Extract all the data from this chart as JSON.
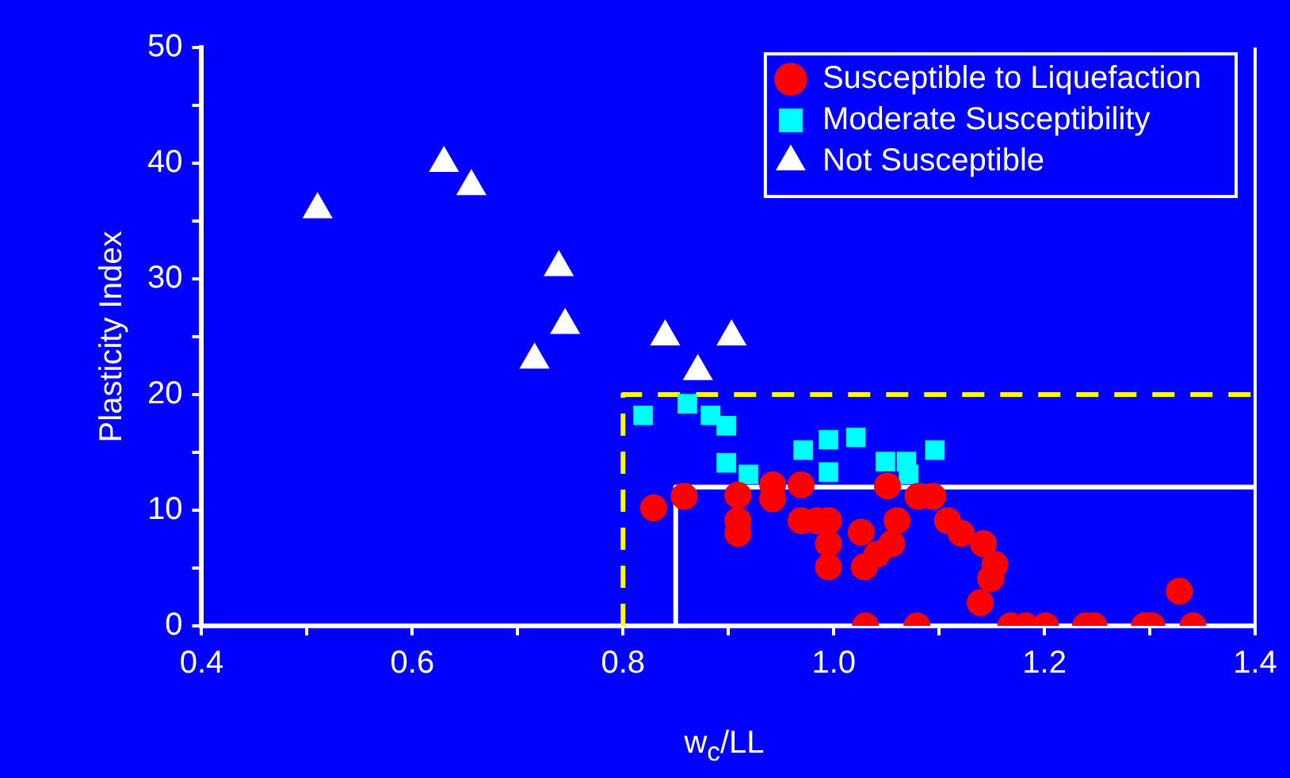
{
  "chart_data": {
    "type": "scatter",
    "xlabel": "w$_{c}$/LL",
    "ylabel": "Plasticity Index",
    "xlim": [
      0.4,
      1.4
    ],
    "ylim": [
      0,
      50
    ],
    "xticks": [
      0.4,
      {
        "value": 0.5,
        "label": null
      },
      0.6,
      {
        "value": 0.7,
        "label": null
      },
      0.8,
      {
        "value": 0.9,
        "label": null
      },
      {
        "value": 1.0,
        "label": "1.0"
      },
      {
        "value": 1.1,
        "label": null
      },
      1.2,
      {
        "value": 1.3,
        "label": null
      },
      1.4
    ],
    "yticks": [
      0,
      {
        "value": 5,
        "label": null
      },
      10,
      {
        "value": 15,
        "label": null
      },
      20,
      {
        "value": 25,
        "label": null
      },
      30,
      {
        "value": 35,
        "label": null
      },
      40,
      {
        "value": 45,
        "label": null
      },
      50
    ],
    "grid": false,
    "legend": "top right",
    "series": [
      {
        "name": "Susceptible to Liquefaction",
        "color": "#ff0000",
        "marker": "circle",
        "x": [
          0.829,
          0.858,
          0.909,
          0.909,
          0.909,
          0.942,
          0.942,
          0.969,
          0.969,
          0.984,
          0.995,
          0.995,
          0.995,
          1.026,
          1.029,
          1.041,
          1.055,
          1.06,
          1.051,
          1.08,
          1.094,
          1.108,
          1.121,
          1.142,
          1.153,
          1.149,
          1.139,
          1.03,
          1.079,
          1.168,
          1.182,
          1.201,
          1.239,
          1.247,
          1.295,
          1.302,
          1.341,
          1.328
        ],
        "values": [
          10.2,
          11.2,
          11.3,
          9.1,
          8.0,
          12.2,
          11.0,
          12.2,
          9.1,
          9.1,
          9.1,
          7.1,
          5.1,
          8.1,
          5.1,
          6.2,
          7.1,
          9.1,
          12.1,
          11.2,
          11.2,
          9.1,
          8.0,
          7.1,
          5.3,
          4.1,
          2.0,
          0,
          0,
          0,
          0,
          0,
          0,
          0,
          0,
          0,
          0,
          3.0
        ]
      },
      {
        "name": "Moderate Susceptibility",
        "color": "#00ffff",
        "marker": "square",
        "x": [
          0.819,
          0.861,
          0.883,
          0.898,
          0.898,
          0.919,
          0.971,
          0.995,
          0.995,
          1.021,
          1.049,
          1.069,
          1.071,
          1.096
        ],
        "values": [
          18.2,
          19.2,
          18.2,
          17.3,
          14.1,
          13.1,
          15.2,
          16.1,
          13.3,
          16.3,
          14.2,
          14.2,
          13.1,
          15.2
        ]
      },
      {
        "name": "Not Susceptible",
        "color": "#ffffff",
        "marker": "triangle",
        "x": [
          0.51,
          0.63,
          0.656,
          0.739,
          0.745,
          0.716,
          0.84,
          0.871,
          0.903
        ],
        "values": [
          36,
          40,
          38,
          31,
          26,
          23,
          25,
          22,
          25
        ]
      },
      {
        "type": "line",
        "color": "#ffff00",
        "line_style": "dashed",
        "marker": "none",
        "x": [
          0.8,
          0.8,
          1.4
        ],
        "values": [
          0,
          20,
          20
        ]
      },
      {
        "type": "line",
        "color": "#ffffff",
        "line_style": "solid",
        "marker": "none",
        "x": [
          0.85,
          0.85,
          1.4
        ],
        "values": [
          0,
          12,
          12
        ]
      }
    ]
  }
}
